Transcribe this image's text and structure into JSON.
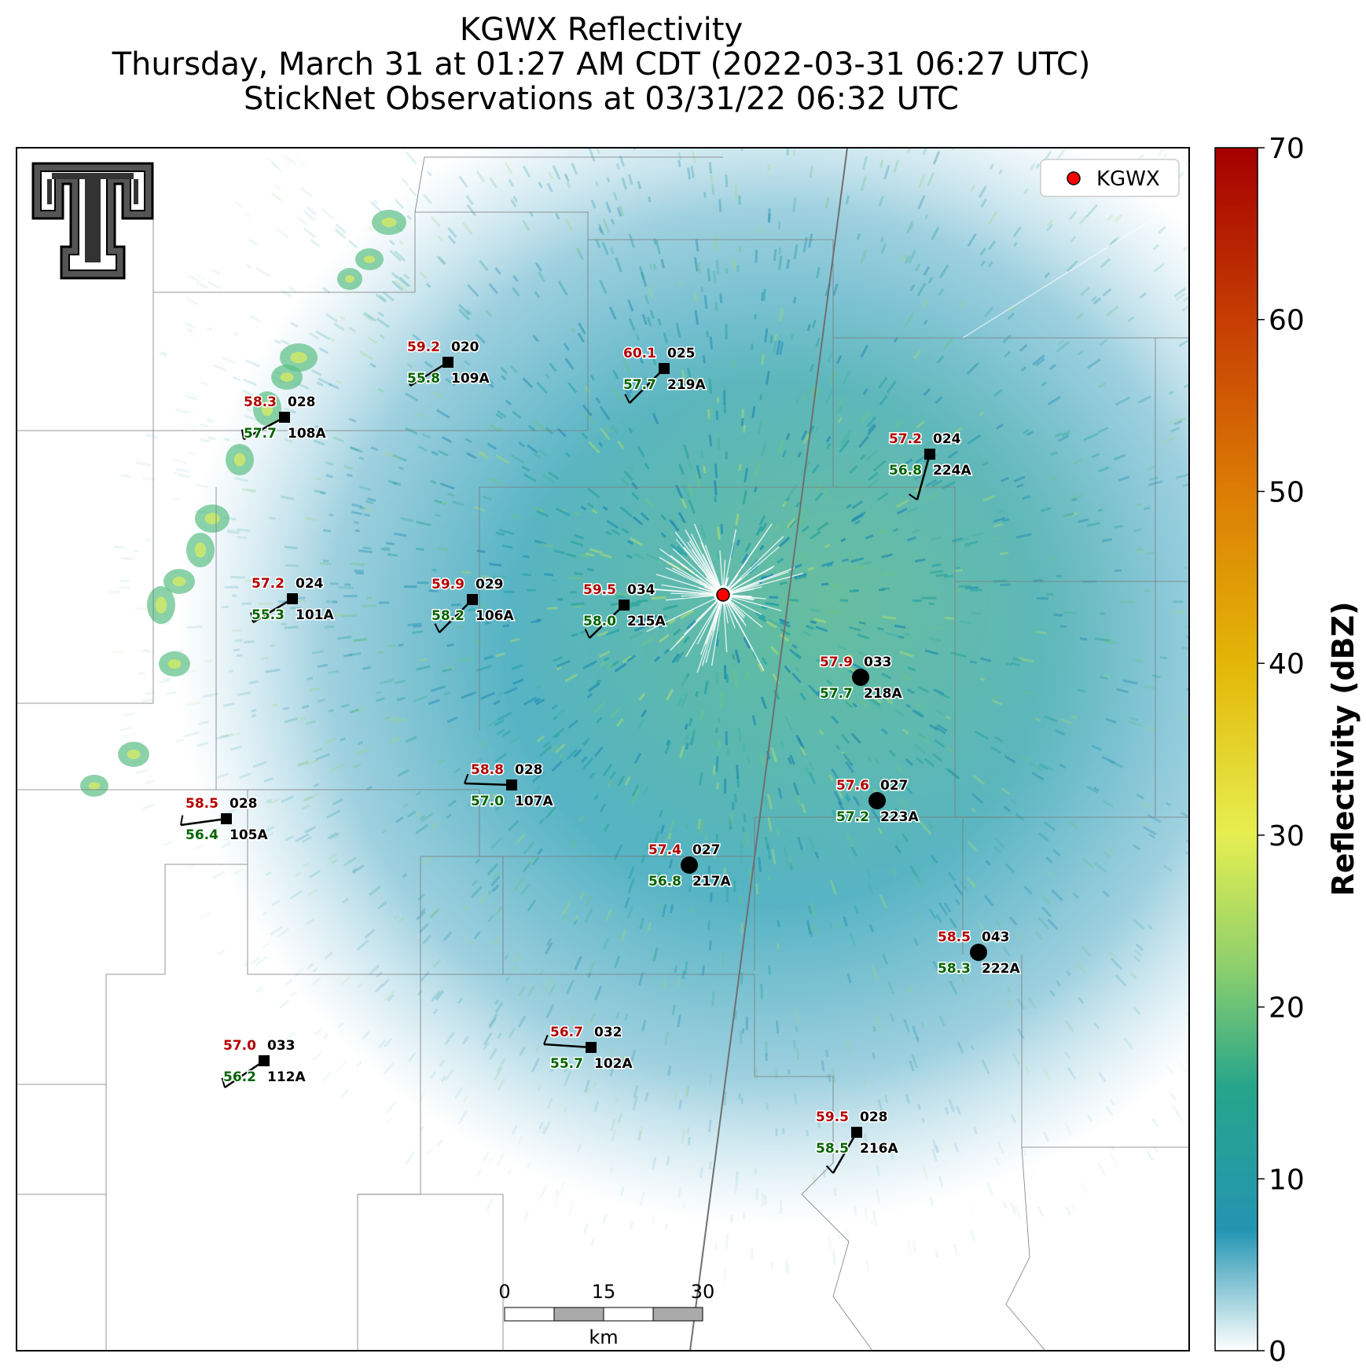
{
  "header": {
    "line1": "KGWX Reflectivity",
    "line2": "Thursday, March 31 at 01:27 AM CDT (2022-03-31 06:27 UTC)",
    "line3": "StickNet Observations at 03/31/22 06:32 UTC"
  },
  "legend": {
    "label": "KGWX"
  },
  "colorbar": {
    "label": "Reflectivity (dBZ)",
    "ticks": [
      "0",
      "10",
      "20",
      "30",
      "40",
      "50",
      "60",
      "70"
    ],
    "range": [
      0,
      70
    ]
  },
  "scalebar": {
    "ticks": [
      "0",
      "15",
      "30"
    ],
    "unit": "km"
  },
  "stations": [
    {
      "id": "109A",
      "temp": "59.2",
      "dew": "55.8",
      "wind": "020",
      "marker": "square"
    },
    {
      "id": "219A",
      "temp": "60.1",
      "dew": "57.7",
      "wind": "025",
      "marker": "square"
    },
    {
      "id": "108A",
      "temp": "58.3",
      "dew": "57.7",
      "wind": "028",
      "marker": "square"
    },
    {
      "id": "224A",
      "temp": "57.2",
      "dew": "56.8",
      "wind": "024",
      "marker": "square"
    },
    {
      "id": "101A",
      "temp": "57.2",
      "dew": "55.3",
      "wind": "024",
      "marker": "square"
    },
    {
      "id": "106A",
      "temp": "59.9",
      "dew": "58.2",
      "wind": "029",
      "marker": "square"
    },
    {
      "id": "215A",
      "temp": "59.5",
      "dew": "58.0",
      "wind": "034",
      "marker": "square"
    },
    {
      "id": "218A",
      "temp": "57.9",
      "dew": "57.7",
      "wind": "033",
      "marker": "circle"
    },
    {
      "id": "107A",
      "temp": "58.8",
      "dew": "57.0",
      "wind": "028",
      "marker": "square"
    },
    {
      "id": "223A",
      "temp": "57.6",
      "dew": "57.2",
      "wind": "027",
      "marker": "circle"
    },
    {
      "id": "105A",
      "temp": "58.5",
      "dew": "56.4",
      "wind": "028",
      "marker": "square"
    },
    {
      "id": "217A",
      "temp": "57.4",
      "dew": "56.8",
      "wind": "027",
      "marker": "circle"
    },
    {
      "id": "222A",
      "temp": "58.5",
      "dew": "58.3",
      "wind": "043",
      "marker": "circle"
    },
    {
      "id": "112A",
      "temp": "57.0",
      "dew": "56.2",
      "wind": "033",
      "marker": "square"
    },
    {
      "id": "102A",
      "temp": "56.7",
      "dew": "55.7",
      "wind": "032",
      "marker": "square"
    },
    {
      "id": "216A",
      "temp": "59.5",
      "dew": "58.5",
      "wind": "028",
      "marker": "square"
    }
  ],
  "colors": {
    "temp": "#b30000",
    "dew": "#006400",
    "radar": "#ff0000",
    "echo": "#1f9bb0"
  }
}
